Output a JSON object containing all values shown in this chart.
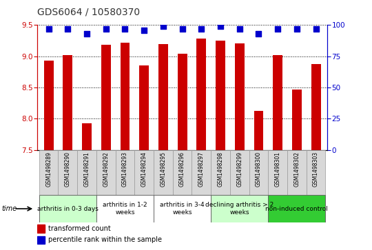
{
  "title": "GDS6064 / 10580370",
  "samples": [
    "GSM1498289",
    "GSM1498290",
    "GSM1498291",
    "GSM1498292",
    "GSM1498293",
    "GSM1498294",
    "GSM1498295",
    "GSM1498296",
    "GSM1498297",
    "GSM1498298",
    "GSM1498299",
    "GSM1498300",
    "GSM1498301",
    "GSM1498302",
    "GSM1498303"
  ],
  "red_values": [
    8.93,
    9.02,
    7.93,
    9.18,
    9.22,
    8.85,
    9.19,
    9.04,
    9.28,
    9.25,
    9.21,
    8.13,
    9.02,
    8.47,
    8.88
  ],
  "blue_values": [
    97,
    97,
    93,
    97,
    97,
    96,
    99,
    97,
    97,
    99,
    97,
    93,
    97,
    97,
    97
  ],
  "ylim_left": [
    7.5,
    9.5
  ],
  "ylim_right": [
    0,
    100
  ],
  "yticks_left": [
    7.5,
    8.0,
    8.5,
    9.0,
    9.5
  ],
  "yticks_right": [
    0,
    25,
    50,
    75,
    100
  ],
  "groups": [
    {
      "label": "arthritis in 0-3 days",
      "start": 0,
      "end": 3,
      "color": "#ccffcc"
    },
    {
      "label": "arthritis in 1-2\nweeks",
      "start": 3,
      "end": 6,
      "color": "#ffffff"
    },
    {
      "label": "arthritis in 3-4\nweeks",
      "start": 6,
      "end": 9,
      "color": "#ffffff"
    },
    {
      "label": "declining arthritis > 2\nweeks",
      "start": 9,
      "end": 12,
      "color": "#ccffcc"
    },
    {
      "label": "non-induced control",
      "start": 12,
      "end": 15,
      "color": "#33cc33"
    }
  ],
  "bar_color": "#cc0000",
  "dot_color": "#0000cc",
  "grid_color": "#000000",
  "title_color": "#333333",
  "left_axis_color": "#cc0000",
  "right_axis_color": "#0000cc",
  "xlabel_time": "time",
  "legend_red": "transformed count",
  "legend_blue": "percentile rank within the sample",
  "bar_width": 0.5,
  "dot_size": 40,
  "label_fontsize": 5.5,
  "group_fontsize": 6.5,
  "axis_fontsize": 7.5,
  "title_fontsize": 10
}
